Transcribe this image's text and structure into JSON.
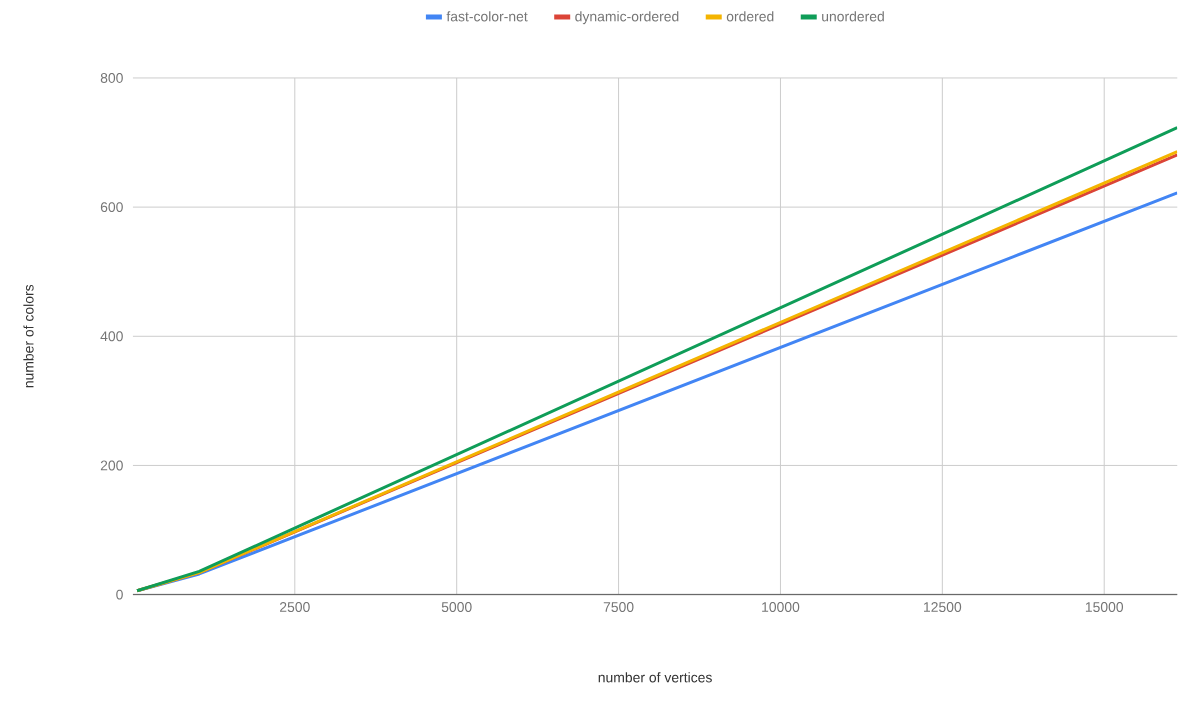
{
  "chart_data": {
    "type": "line",
    "xlabel": "number of vertices",
    "ylabel": "number of colors",
    "x": [
      64,
      1024,
      16128
    ],
    "series": [
      {
        "name": "fast-color-net",
        "color": "#4285f4",
        "values": [
          6,
          32,
          622
        ]
      },
      {
        "name": "dynamic-ordered",
        "color": "#db4437",
        "values": [
          6,
          34,
          681
        ]
      },
      {
        "name": "ordered",
        "color": "#f4b400",
        "values": [
          6,
          34,
          686
        ]
      },
      {
        "name": "unordered",
        "color": "#0f9d58",
        "values": [
          6,
          36,
          723
        ]
      }
    ],
    "xlim": [
      0,
      16128
    ],
    "xticks": [
      2500,
      5000,
      7500,
      10000,
      12500,
      15000
    ],
    "ylim": [
      0,
      800
    ],
    "yticks": [
      0,
      200,
      400,
      600,
      800
    ],
    "grid": true,
    "legend": "top",
    "marker": "none",
    "line_style": "solid"
  }
}
